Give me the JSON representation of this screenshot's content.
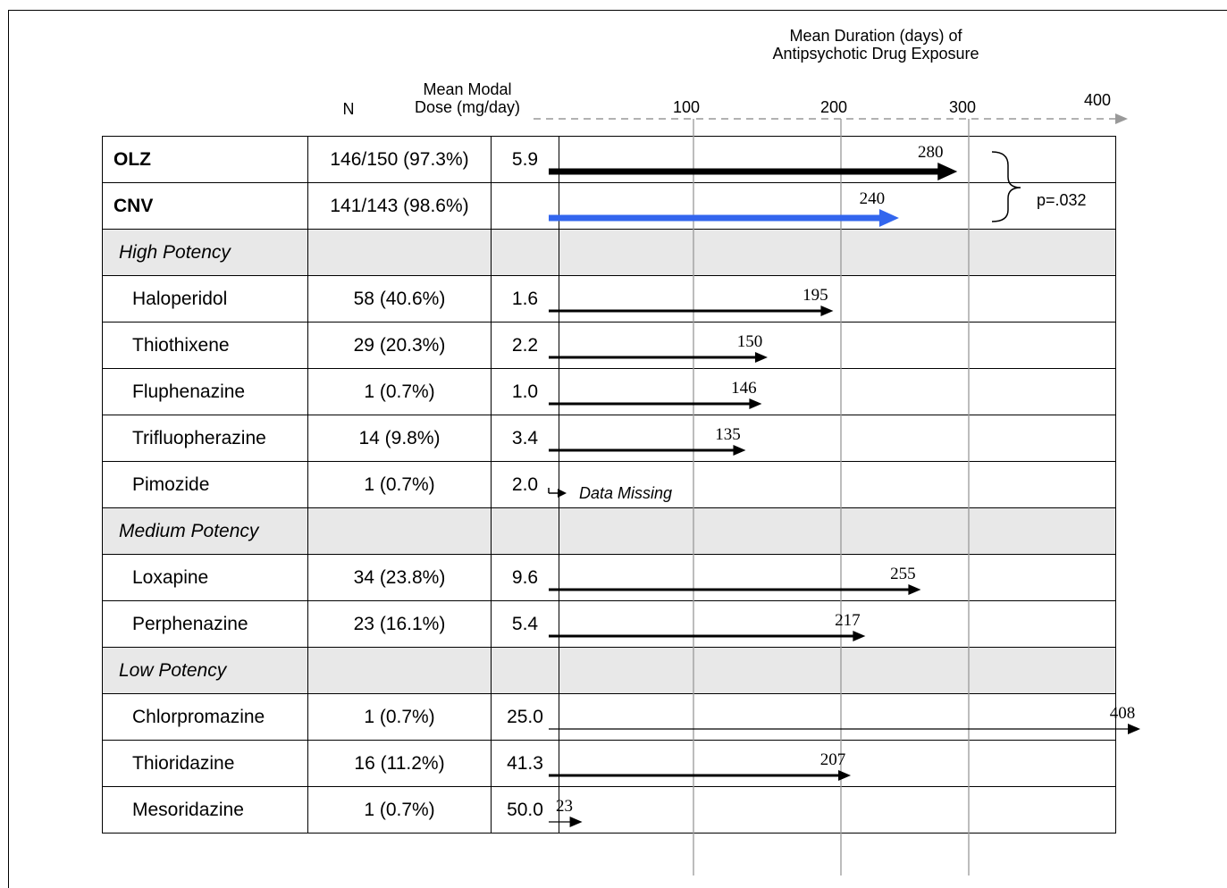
{
  "header": {
    "duration_line1": "Mean Duration (days) of",
    "duration_line2": "Antipsychotic Drug Exposure",
    "n_label": "N",
    "dose_line1": "Mean Modal",
    "dose_line2": "Dose (mg/day)"
  },
  "pvalue": "p=.032",
  "missing_label": "Data Missing",
  "chart_data": {
    "type": "bar",
    "orientation": "horizontal",
    "xlabel": "Mean Duration (days) of Antipsychotic Drug Exposure",
    "x_ticks": [
      "100",
      "200",
      "300",
      "400"
    ],
    "rows": [
      {
        "name": "OLZ",
        "n": "146/150 (97.3%)",
        "dose": "5.9",
        "value": 280,
        "label": "280",
        "kind": "bold",
        "color": "#000000"
      },
      {
        "name": "CNV",
        "n": "141/143 (98.6%)",
        "dose": "",
        "value": 240,
        "label": "240",
        "kind": "bold",
        "color": "#3366ee"
      },
      {
        "name": "High Potency",
        "n": "",
        "dose": "",
        "kind": "section"
      },
      {
        "name": "Haloperidol",
        "n": "58 (40.6%)",
        "dose": "1.6",
        "value": 195,
        "label": "195",
        "kind": "drug"
      },
      {
        "name": "Thiothixene",
        "n": "29 (20.3%)",
        "dose": "2.2",
        "value": 150,
        "label": "150",
        "kind": "drug"
      },
      {
        "name": "Fluphenazine",
        "n": "1 (0.7%)",
        "dose": "1.0",
        "value": 146,
        "label": "146",
        "kind": "drug"
      },
      {
        "name": "Trifluopherazine",
        "n": "14 (9.8%)",
        "dose": "3.4",
        "value": 135,
        "label": "135",
        "kind": "drug"
      },
      {
        "name": "Pimozide",
        "n": "1 (0.7%)",
        "dose": "2.0",
        "value": null,
        "label": "",
        "kind": "drug",
        "missing": true
      },
      {
        "name": "Medium Potency",
        "n": "",
        "dose": "",
        "kind": "section"
      },
      {
        "name": "Loxapine",
        "n": "34 (23.8%)",
        "dose": "9.6",
        "value": 255,
        "label": "255",
        "kind": "drug"
      },
      {
        "name": "Perphenazine",
        "n": "23 (16.1%)",
        "dose": "5.4",
        "value": 217,
        "label": "217",
        "kind": "drug"
      },
      {
        "name": "Low Potency",
        "n": "",
        "dose": "",
        "kind": "section"
      },
      {
        "name": "Chlorpromazine",
        "n": "1 (0.7%)",
        "dose": "25.0",
        "value": 408,
        "label": "408",
        "kind": "drug"
      },
      {
        "name": "Thioridazine",
        "n": "16 (11.2%)",
        "dose": "41.3",
        "value": 207,
        "label": "207",
        "kind": "drug"
      },
      {
        "name": "Mesoridazine",
        "n": "1 (0.7%)",
        "dose": "50.0",
        "value": 23,
        "label": "23",
        "kind": "drug"
      }
    ]
  }
}
